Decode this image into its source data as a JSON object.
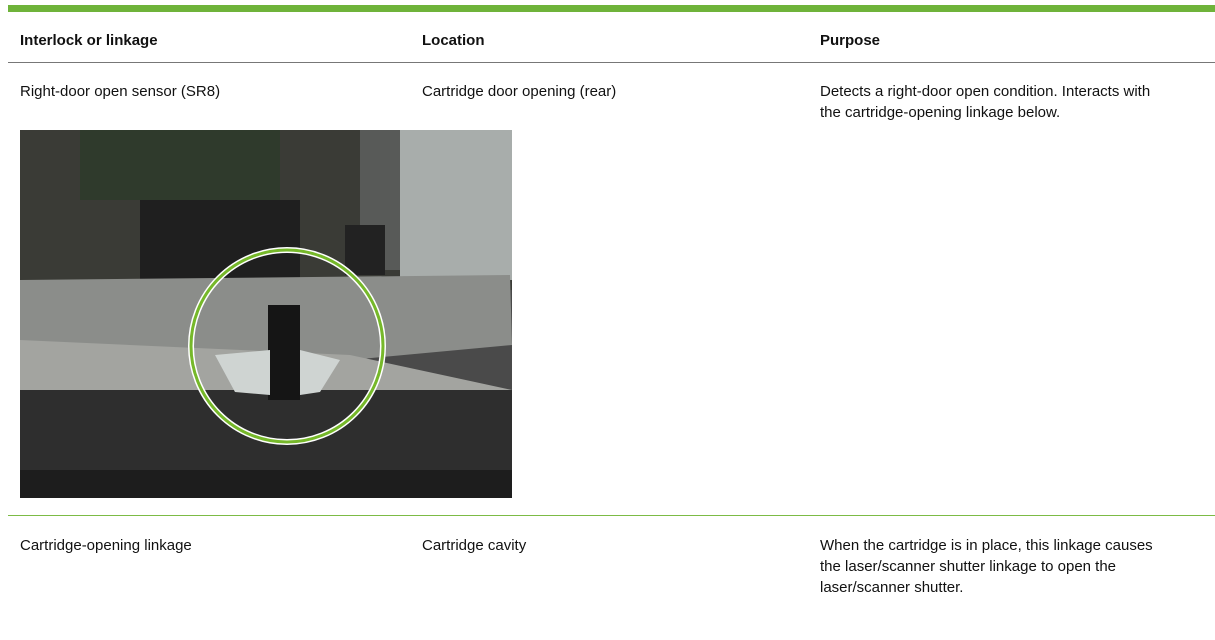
{
  "table": {
    "header": [
      "Interlock or linkage",
      "Location",
      "Purpose"
    ],
    "rows": [
      [
        "Right-door open sensor (SR8)",
        "Cartridge door opening (rear)",
        "Detects a right-door open condition. Interacts with the cartridge-opening linkage below."
      ],
      [
        "Cartridge-opening linkage",
        "Cartridge cavity",
        "When the cartridge is in place, this linkage causes the laser/scanner shutter linkage to open the laser/scanner shutter."
      ]
    ]
  }
}
